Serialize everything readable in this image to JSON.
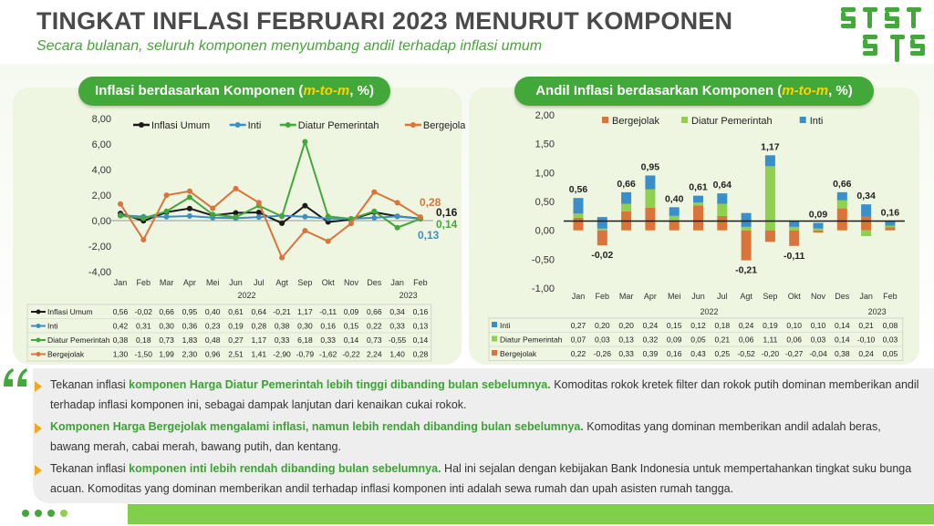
{
  "header": {
    "title": "TINGKAT INFLASI FEBRUARI 2023 MENURUT KOMPONEN",
    "subtitle": "Secara bulanan, seluruh komponen menyumbang andil terhadap inflasi umum"
  },
  "colors": {
    "green": "#43a83a",
    "light_green": "#8fd14f",
    "blue": "#3a8fc9",
    "orange": "#d9743a",
    "black": "#1a1a1a",
    "yellow": "#ffd200",
    "bullet": "#f0a820"
  },
  "left_panel": {
    "title_plain": "Inflasi berdasarkan Komponen (",
    "title_hl": "m-to-m",
    "title_end": ", %)"
  },
  "right_panel": {
    "title_plain": "Andil Inflasi berdasarkan Komponen (",
    "title_hl": "m-to-m",
    "title_end": ", %)"
  },
  "chart_data": [
    {
      "type": "line",
      "categories": [
        "Jan",
        "Feb",
        "Mar",
        "Apr",
        "Mei",
        "Jun",
        "Jul",
        "Agt",
        "Sep",
        "Okt",
        "Nov",
        "Des",
        "Jan",
        "Feb"
      ],
      "year_labels": [
        "2022",
        "2023"
      ],
      "ylim": [
        -4,
        8
      ],
      "yticks": [
        "8,00",
        "6,00",
        "4,00",
        "2,00",
        "0,00",
        "-2,00",
        "-4,00"
      ],
      "series": [
        {
          "name": "Inflasi Umum",
          "color": "#1a1a1a",
          "values": [
            0.56,
            -0.02,
            0.66,
            0.95,
            0.4,
            0.61,
            0.64,
            -0.21,
            1.17,
            -0.11,
            0.09,
            0.66,
            0.34,
            0.16
          ],
          "labels": [
            "0,56",
            "-0,02",
            "0,66",
            "0,95",
            "0,40",
            "0,61",
            "0,64",
            "-0,21",
            "1,17",
            "-0,11",
            "0,09",
            "0,66",
            "0,34",
            "0,16"
          ]
        },
        {
          "name": "Inti",
          "color": "#3a8fc9",
          "values": [
            0.42,
            0.31,
            0.3,
            0.36,
            0.23,
            0.19,
            0.28,
            0.38,
            0.3,
            0.16,
            0.15,
            0.22,
            0.33,
            0.13
          ],
          "labels": [
            "0,42",
            "0,31",
            "0,30",
            "0,36",
            "0,23",
            "0,19",
            "0,28",
            "0,38",
            "0,30",
            "0,16",
            "0,15",
            "0,22",
            "0,33",
            "0,13"
          ]
        },
        {
          "name": "Diatur Pemerintah",
          "color": "#43a83a",
          "values": [
            0.38,
            0.18,
            0.73,
            1.83,
            0.48,
            0.27,
            1.17,
            0.33,
            6.18,
            0.33,
            0.14,
            0.73,
            -0.55,
            0.14
          ],
          "labels": [
            "0,38",
            "0,18",
            "0,73",
            "1,83",
            "0,48",
            "0,27",
            "1,17",
            "0,33",
            "6,18",
            "0,33",
            "0,14",
            "0,73",
            "-0,55",
            "0,14"
          ]
        },
        {
          "name": "Bergejolak",
          "color": "#d9743a",
          "values": [
            1.3,
            -1.5,
            1.99,
            2.3,
            0.96,
            2.51,
            1.41,
            -2.9,
            -0.79,
            -1.62,
            -0.22,
            2.24,
            1.4,
            0.28
          ],
          "labels": [
            "1,30",
            "-1,50",
            "1,99",
            "2,30",
            "0,96",
            "2,51",
            "1,41",
            "-2,90",
            "-0,79",
            "-1,62",
            "-0,22",
            "2,24",
            "1,40",
            "0,28"
          ]
        }
      ],
      "end_labels": [
        "0,16",
        "0,14",
        "0,13",
        "0,28"
      ]
    },
    {
      "type": "bar",
      "stacked": true,
      "categories": [
        "Jan",
        "Feb",
        "Mar",
        "Apr",
        "Mei",
        "Jun",
        "Jul",
        "Agt",
        "Sep",
        "Okt",
        "Nov",
        "Des",
        "Jan",
        "Feb"
      ],
      "year_labels": [
        "2022",
        "2023"
      ],
      "ylim": [
        -1,
        2
      ],
      "yticks": [
        "2,00",
        "1,50",
        "1,00",
        "0,50",
        "0,00",
        "-0,50",
        "-1,00"
      ],
      "totals": [
        0.56,
        -0.02,
        0.66,
        0.95,
        0.4,
        0.61,
        0.64,
        -0.21,
        1.17,
        -0.11,
        0.09,
        0.66,
        0.34,
        0.16
      ],
      "total_labels": [
        "0,56",
        "-0,02",
        "0,66",
        "0,95",
        "0,40",
        "0,61",
        "0,64",
        "-0,21",
        "1,17",
        "-0,11",
        "0,09",
        "0,66",
        "0,34",
        "0,16"
      ],
      "series": [
        {
          "name": "Inti",
          "color": "#3a8fc9",
          "values": [
            0.27,
            0.2,
            0.2,
            0.24,
            0.15,
            0.12,
            0.18,
            0.24,
            0.19,
            0.1,
            0.1,
            0.14,
            0.21,
            0.08
          ],
          "labels": [
            "0,27",
            "0,20",
            "0,20",
            "0,24",
            "0,15",
            "0,12",
            "0,18",
            "0,24",
            "0,19",
            "0,10",
            "0,10",
            "0,14",
            "0,21",
            "0,08"
          ]
        },
        {
          "name": "Diatur Pemerintah",
          "color": "#8fd14f",
          "values": [
            0.07,
            0.03,
            0.13,
            0.32,
            0.09,
            0.05,
            0.21,
            0.06,
            1.11,
            0.06,
            0.03,
            0.14,
            -0.1,
            0.03
          ],
          "labels": [
            "0,07",
            "0,03",
            "0,13",
            "0,32",
            "0,09",
            "0,05",
            "0,21",
            "0,06",
            "1,11",
            "0,06",
            "0,03",
            "0,14",
            "-0,10",
            "0,03"
          ]
        },
        {
          "name": "Bergejolak",
          "color": "#d9743a",
          "values": [
            0.22,
            -0.26,
            0.33,
            0.39,
            0.16,
            0.43,
            0.25,
            -0.52,
            -0.2,
            -0.27,
            -0.04,
            0.38,
            0.24,
            0.05
          ],
          "labels": [
            "0,22",
            "-0,26",
            "0,33",
            "0,39",
            "0,16",
            "0,43",
            "0,25",
            "-0,52",
            "-0,20",
            "-0,27",
            "-0,04",
            "0,38",
            "0,24",
            "0,05"
          ]
        }
      ]
    }
  ],
  "paragraphs": [
    {
      "pre": "Tekanan inflasi ",
      "hl": "komponen Harga Diatur Pemerintah lebih tinggi dibanding bulan sebelumnya.",
      "post": " Komoditas rokok kretek filter dan rokok putih dominan memberikan andil terhadap inflasi komponen ini, sebagai dampak lanjutan dari kenaikan cukai rokok."
    },
    {
      "pre": "",
      "hl": "Komponen Harga Bergejolak mengalami inflasi, namun lebih rendah dibanding bulan sebelumnya.",
      "post": " Komoditas yang dominan memberikan andil adalah beras, bawang merah, cabai merah, bawang putih, dan kentang."
    },
    {
      "pre": "Tekanan inflasi ",
      "hl": "komponen inti lebih rendah dibanding bulan sebelumnya.",
      "post": " Hal ini sejalan dengan kebijakan Bank Indonesia untuk mempertahankan tingkat suku bunga acuan. Komoditas yang dominan memberikan andil terhadap inflasi komponen inti adalah sewa rumah dan upah asisten rumah tangga."
    }
  ]
}
